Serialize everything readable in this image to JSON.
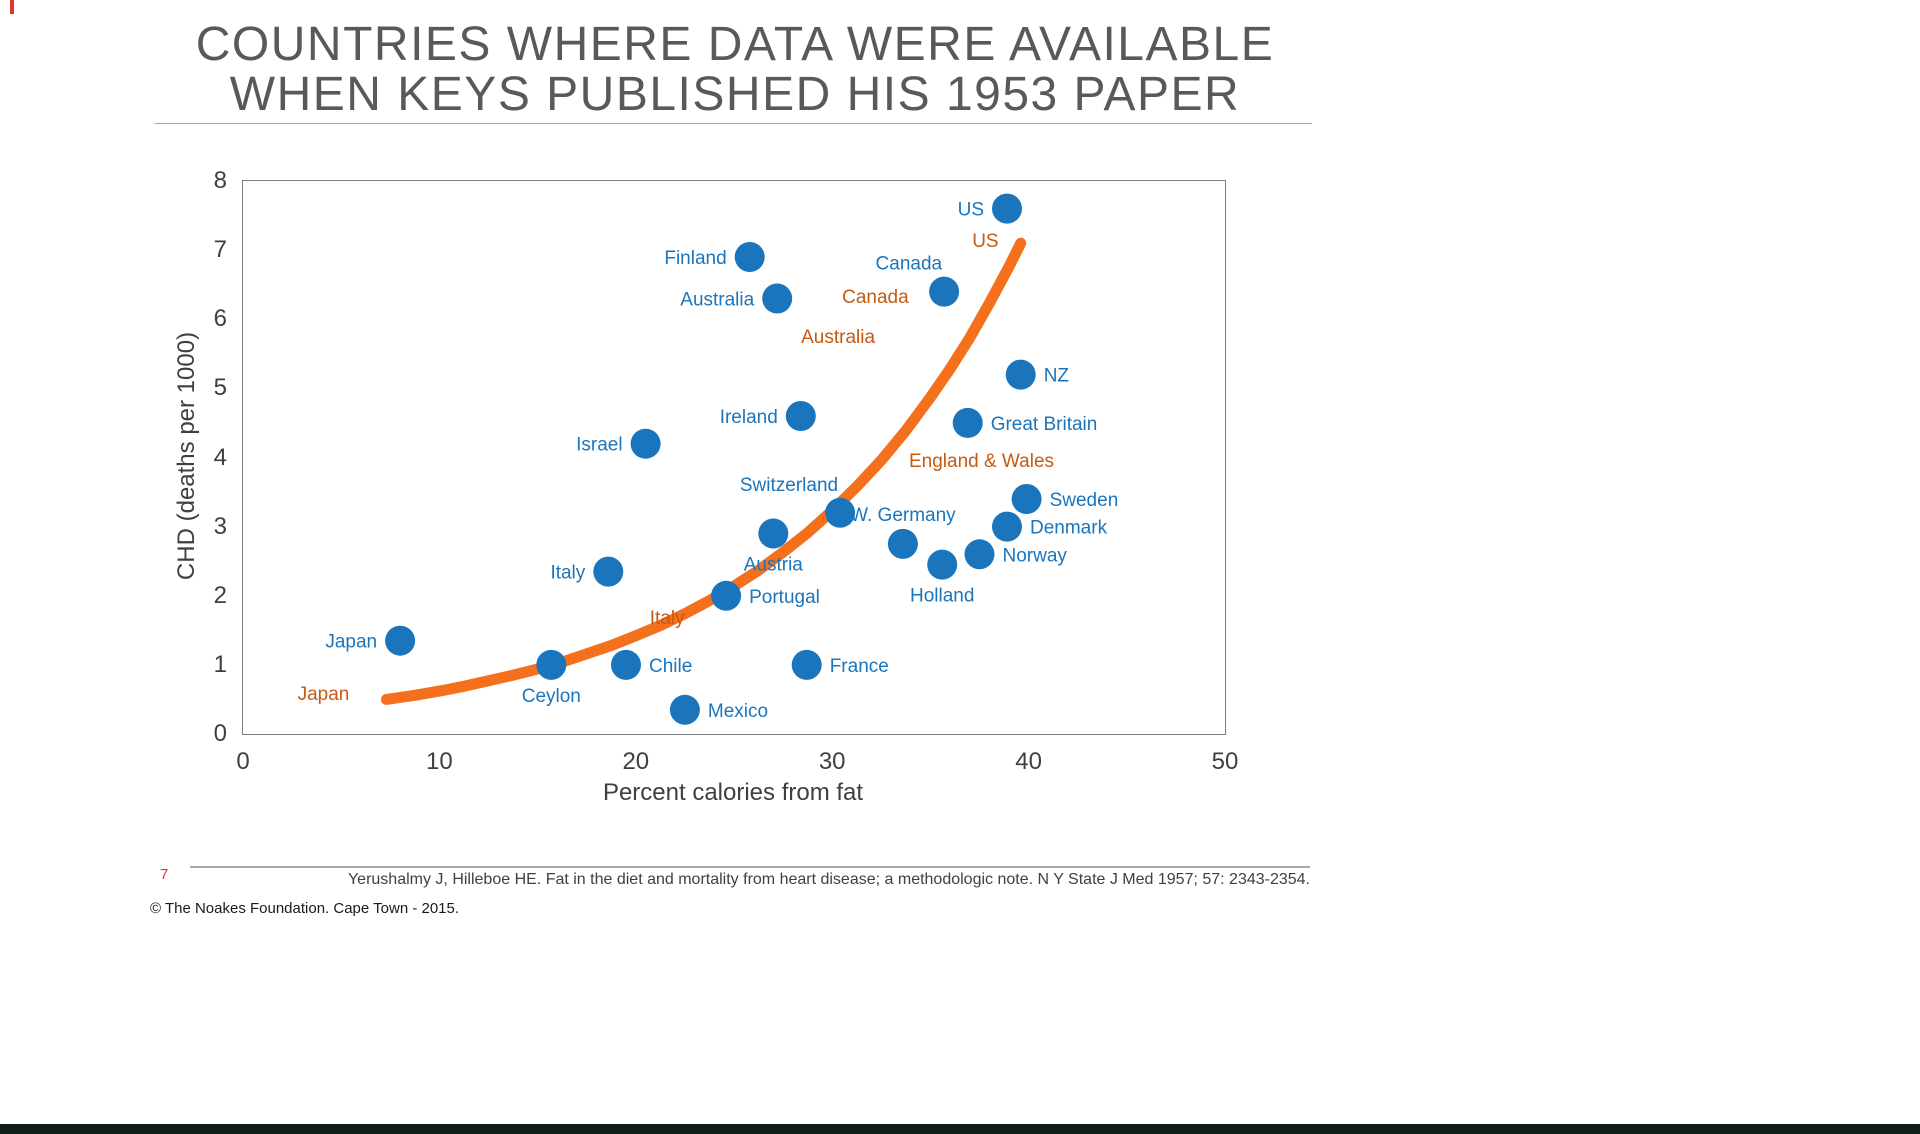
{
  "slide": {
    "title_line1": "COUNTRIES WHERE DATA WERE AVAILABLE",
    "title_line2": "WHEN KEYS PUBLISHED HIS 1953 PAPER"
  },
  "footer": {
    "page_number": "7",
    "citation": "Yerushalmy J, Hilleboe HE. Fat in the diet and mortality from heart disease; a methodologic note. N Y State J Med 1957; 57: 2343-2354.",
    "copyright": "© The Noakes Foundation. Cape Town - 2015."
  },
  "colors": {
    "title_gray": "#595959",
    "point_blue": "#1b75bc",
    "curve_orange": "#f4701d",
    "keys_label_orange": "#c55a11",
    "page_number_red": "#e5342c",
    "axis_text": "#3f3f3f",
    "bottom_bar": "#101b1a"
  },
  "chart_data": {
    "type": "scatter",
    "title": "COUNTRIES WHERE DATA WERE AVAILABLE WHEN KEYS PUBLISHED HIS 1953 PAPER",
    "xlabel": "Percent calories from fat",
    "ylabel": "CHD (deaths per 1000)",
    "xlim": [
      0,
      50
    ],
    "ylim": [
      0,
      8
    ],
    "xticks": [
      0,
      10,
      20,
      30,
      40,
      50
    ],
    "yticks": [
      0,
      1,
      2,
      3,
      4,
      5,
      6,
      7,
      8
    ],
    "grid": false,
    "legend": "none",
    "points": [
      {
        "label": "US",
        "x": 38.9,
        "y": 7.6,
        "label_pos": "left"
      },
      {
        "label": "Finland",
        "x": 25.8,
        "y": 6.9,
        "label_pos": "left"
      },
      {
        "label": "Australia",
        "x": 27.2,
        "y": 6.3,
        "label_pos": "left"
      },
      {
        "label": "Canada",
        "x": 35.7,
        "y": 6.4,
        "label_pos": "above-left"
      },
      {
        "label": "NZ",
        "x": 39.6,
        "y": 5.2,
        "label_pos": "right"
      },
      {
        "label": "Ireland",
        "x": 28.4,
        "y": 4.6,
        "label_pos": "left"
      },
      {
        "label": "Great Britain",
        "x": 36.9,
        "y": 4.5,
        "label_pos": "right"
      },
      {
        "label": "Israel",
        "x": 20.5,
        "y": 4.2,
        "label_pos": "left"
      },
      {
        "label": "Switzerland",
        "x": 30.4,
        "y": 3.2,
        "label_pos": "above-left"
      },
      {
        "label": "Sweden",
        "x": 39.9,
        "y": 3.4,
        "label_pos": "right"
      },
      {
        "label": "Denmark",
        "x": 38.9,
        "y": 3.0,
        "label_pos": "right"
      },
      {
        "label": "W. Germany",
        "x": 33.6,
        "y": 2.75,
        "label_pos": "above"
      },
      {
        "label": "Norway",
        "x": 37.5,
        "y": 2.6,
        "label_pos": "right"
      },
      {
        "label": "Holland",
        "x": 35.6,
        "y": 2.45,
        "label_pos": "below"
      },
      {
        "label": "Austria",
        "x": 27.0,
        "y": 2.9,
        "label_pos": "below"
      },
      {
        "label": "Italy",
        "x": 18.6,
        "y": 2.35,
        "label_pos": "left"
      },
      {
        "label": "Portugal",
        "x": 24.6,
        "y": 2.0,
        "label_pos": "right"
      },
      {
        "label": "Japan",
        "x": 8.0,
        "y": 1.35,
        "label_pos": "left"
      },
      {
        "label": "Ceylon",
        "x": 15.7,
        "y": 1.0,
        "label_pos": "below"
      },
      {
        "label": "Chile",
        "x": 19.5,
        "y": 1.0,
        "label_pos": "right"
      },
      {
        "label": "France",
        "x": 28.7,
        "y": 1.0,
        "label_pos": "right"
      },
      {
        "label": "Mexico",
        "x": 22.5,
        "y": 0.35,
        "label_pos": "right"
      }
    ],
    "keys_curve": [
      [
        7.3,
        0.5
      ],
      [
        8.75,
        0.56
      ],
      [
        10,
        0.62
      ],
      [
        11.25,
        0.69
      ],
      [
        12.5,
        0.77
      ],
      [
        13.75,
        0.85
      ],
      [
        15,
        0.94
      ],
      [
        16.25,
        1.04
      ],
      [
        17.5,
        1.16
      ],
      [
        18.75,
        1.28
      ],
      [
        20,
        1.42
      ],
      [
        21.25,
        1.57
      ],
      [
        22.5,
        1.74
      ],
      [
        23.75,
        1.93
      ],
      [
        25,
        2.14
      ],
      [
        26.25,
        2.37
      ],
      [
        27.5,
        2.63
      ],
      [
        28.75,
        2.91
      ],
      [
        30,
        3.23
      ],
      [
        31.25,
        3.58
      ],
      [
        32.5,
        3.96
      ],
      [
        33.75,
        4.39
      ],
      [
        35,
        4.87
      ],
      [
        36,
        5.28
      ],
      [
        37,
        5.73
      ],
      [
        38,
        6.23
      ],
      [
        39,
        6.76
      ],
      [
        39.6,
        7.1
      ]
    ],
    "keys_labels": [
      {
        "label": "US",
        "x": 37.8,
        "y": 7.13
      },
      {
        "label": "Canada",
        "x": 32.2,
        "y": 6.32
      },
      {
        "label": "Australia",
        "x": 30.3,
        "y": 5.74
      },
      {
        "label": "England & Wales",
        "x": 37.6,
        "y": 3.95
      },
      {
        "label": "Italy",
        "x": 21.6,
        "y": 1.68
      },
      {
        "label": "Japan",
        "x": 4.1,
        "y": 0.58
      }
    ]
  }
}
